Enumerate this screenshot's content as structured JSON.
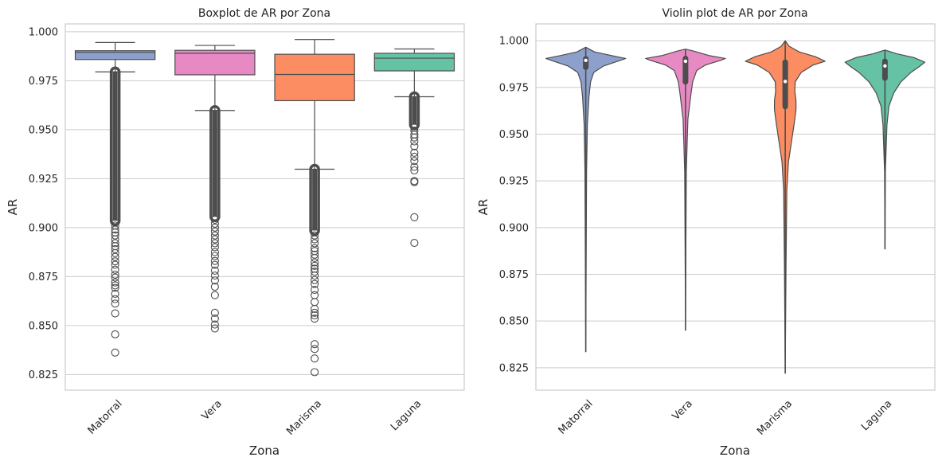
{
  "chart_data": [
    {
      "type": "boxplot",
      "title": "Boxplot de AR por Zona",
      "xlabel": "Zona",
      "ylabel": "AR",
      "categories": [
        "Matorral",
        "Vera",
        "Marisma",
        "Laguna"
      ],
      "ylim": [
        0.817,
        1.004
      ],
      "yticks": [
        0.825,
        0.85,
        0.875,
        0.9,
        0.925,
        0.95,
        0.975,
        1.0
      ],
      "ytick_labels": [
        "0.825",
        "0.850",
        "0.875",
        "0.900",
        "0.925",
        "0.950",
        "0.975",
        "1.000"
      ],
      "grid": true,
      "series": [
        {
          "category": "Matorral",
          "color": "#8da0cb",
          "q1": 0.9858,
          "median": 0.9895,
          "q3": 0.9903,
          "whisker_low": 0.9795,
          "whisker_high": 0.9945,
          "dense_outliers": [
            0.9035,
            0.9795
          ],
          "outliers": [
            0.9025,
            0.901,
            0.899,
            0.8975,
            0.896,
            0.894,
            0.892,
            0.8905,
            0.889,
            0.887,
            0.885,
            0.8828,
            0.881,
            0.8785,
            0.876,
            0.8745,
            0.872,
            0.8705,
            0.8692,
            0.8662,
            0.8635,
            0.8612,
            0.8562,
            0.8455,
            0.8362
          ]
        },
        {
          "category": "Vera",
          "color": "#e78ac3",
          "q1": 0.978,
          "median": 0.989,
          "q3": 0.9905,
          "whisker_low": 0.9598,
          "whisker_high": 0.993,
          "dense_outliers": [
            0.9055,
            0.9598
          ],
          "outliers": [
            0.904,
            0.902,
            0.9,
            0.898,
            0.896,
            0.894,
            0.892,
            0.89,
            0.8875,
            0.8855,
            0.883,
            0.881,
            0.878,
            0.8755,
            0.873,
            0.8698,
            0.8655,
            0.8565,
            0.8535,
            0.8505,
            0.8485
          ]
        },
        {
          "category": "Marisma",
          "color": "#fc8d62",
          "q1": 0.9648,
          "median": 0.9782,
          "q3": 0.9885,
          "whisker_low": 0.9298,
          "whisker_high": 0.996,
          "dense_outliers": [
            0.8985,
            0.9298
          ],
          "outliers": [
            0.8975,
            0.896,
            0.894,
            0.892,
            0.8895,
            0.888,
            0.8862,
            0.8845,
            0.8822,
            0.8805,
            0.879,
            0.8775,
            0.8755,
            0.8732,
            0.8712,
            0.8682,
            0.8655,
            0.862,
            0.8585,
            0.8565,
            0.8552,
            0.8535,
            0.8405,
            0.838,
            0.8332,
            0.8262
          ]
        },
        {
          "category": "Laguna",
          "color": "#66c2a5",
          "q1": 0.98,
          "median": 0.9865,
          "q3": 0.989,
          "whisker_low": 0.9668,
          "whisker_high": 0.9912,
          "dense_outliers": [
            0.9525,
            0.9668
          ],
          "outliers": [
            0.951,
            0.9495,
            0.9475,
            0.946,
            0.944,
            0.9415,
            0.9382,
            0.9362,
            0.934,
            0.931,
            0.9292,
            0.9238,
            0.9232,
            0.9053,
            0.8922
          ]
        }
      ]
    },
    {
      "type": "violin",
      "title": "Violin plot de AR por Zona",
      "xlabel": "Zona",
      "ylabel": "AR",
      "categories": [
        "Matorral",
        "Vera",
        "Marisma",
        "Laguna"
      ],
      "ylim": [
        0.813,
        1.009
      ],
      "yticks": [
        0.825,
        0.85,
        0.875,
        0.9,
        0.925,
        0.95,
        0.975,
        1.0
      ],
      "ytick_labels": [
        "0.825",
        "0.850",
        "0.875",
        "0.900",
        "0.925",
        "0.950",
        "0.975",
        "1.000"
      ],
      "grid": true,
      "series": [
        {
          "category": "Matorral",
          "color": "#8da0cb",
          "min": 0.8335,
          "max": 0.9965,
          "q1": 0.9858,
          "median": 0.9895,
          "q3": 0.9903,
          "profile": [
            [
              0.8335,
              0.0
            ],
            [
              0.88,
              0.01
            ],
            [
              0.93,
              0.02
            ],
            [
              0.955,
              0.04
            ],
            [
              0.97,
              0.08
            ],
            [
              0.978,
              0.12
            ],
            [
              0.983,
              0.2
            ],
            [
              0.9865,
              0.45
            ],
            [
              0.989,
              0.8
            ],
            [
              0.9905,
              1.0
            ],
            [
              0.992,
              0.65
            ],
            [
              0.994,
              0.22
            ],
            [
              0.9965,
              0.0
            ]
          ]
        },
        {
          "category": "Vera",
          "color": "#e78ac3",
          "min": 0.845,
          "max": 0.9955,
          "q1": 0.978,
          "median": 0.989,
          "q3": 0.9905,
          "profile": [
            [
              0.845,
              0.0
            ],
            [
              0.89,
              0.01
            ],
            [
              0.93,
              0.02
            ],
            [
              0.958,
              0.06
            ],
            [
              0.965,
              0.1
            ],
            [
              0.972,
              0.14
            ],
            [
              0.978,
              0.18
            ],
            [
              0.984,
              0.28
            ],
            [
              0.987,
              0.5
            ],
            [
              0.9895,
              0.88
            ],
            [
              0.9905,
              1.0
            ],
            [
              0.992,
              0.6
            ],
            [
              0.9945,
              0.2
            ],
            [
              0.9955,
              0.0
            ]
          ]
        },
        {
          "category": "Marisma",
          "color": "#fc8d62",
          "min": 0.822,
          "max": 1.0,
          "q1": 0.9648,
          "median": 0.9782,
          "q3": 0.9885,
          "profile": [
            [
              0.822,
              0.0
            ],
            [
              0.88,
              0.02
            ],
            [
              0.92,
              0.04
            ],
            [
              0.935,
              0.08
            ],
            [
              0.945,
              0.15
            ],
            [
              0.955,
              0.22
            ],
            [
              0.963,
              0.27
            ],
            [
              0.968,
              0.27
            ],
            [
              0.973,
              0.24
            ],
            [
              0.978,
              0.25
            ],
            [
              0.983,
              0.4
            ],
            [
              0.987,
              0.7
            ],
            [
              0.989,
              1.0
            ],
            [
              0.9915,
              0.75
            ],
            [
              0.994,
              0.35
            ],
            [
              0.997,
              0.1
            ],
            [
              1.0,
              0.0
            ]
          ]
        },
        {
          "category": "Laguna",
          "color": "#66c2a5",
          "min": 0.8885,
          "max": 0.995,
          "q1": 0.98,
          "median": 0.9865,
          "q3": 0.989,
          "profile": [
            [
              0.8885,
              0.0
            ],
            [
              0.93,
              0.01
            ],
            [
              0.955,
              0.05
            ],
            [
              0.965,
              0.1
            ],
            [
              0.972,
              0.22
            ],
            [
              0.978,
              0.4
            ],
            [
              0.983,
              0.65
            ],
            [
              0.986,
              0.85
            ],
            [
              0.9885,
              1.0
            ],
            [
              0.991,
              0.72
            ],
            [
              0.993,
              0.3
            ],
            [
              0.995,
              0.0
            ]
          ]
        }
      ]
    }
  ]
}
